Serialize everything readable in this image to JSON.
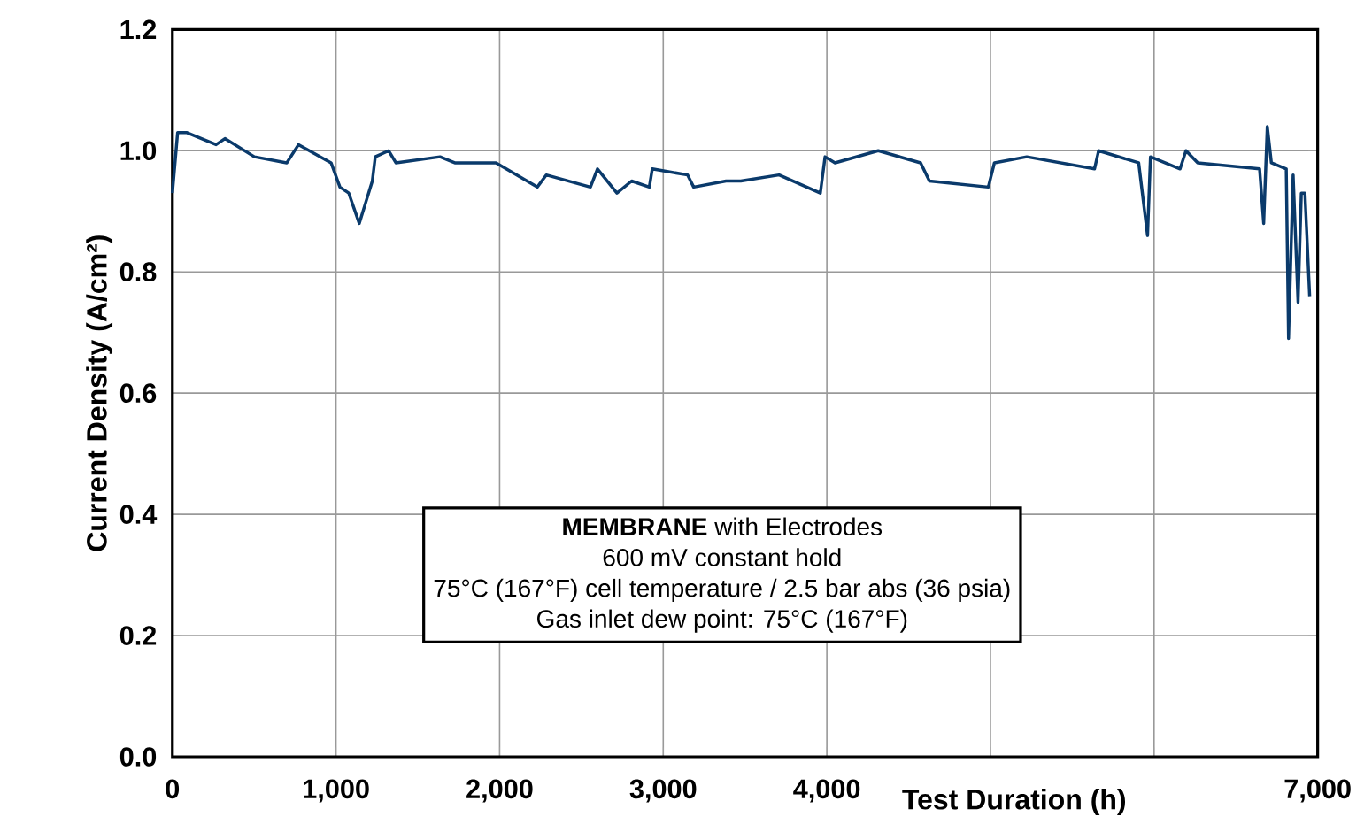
{
  "chart_data": {
    "type": "line",
    "xlabel": "Test Duration (h)",
    "ylabel": "Current Density (A/cm²)",
    "annotations": [
      "**MEMBRANE** with Electrodes",
      "600 mV constant hold",
      "75°C (167°F) cell temperature / 2.5 bar abs (36 psia)",
      "Gas inlet dew point: 75°C (167°F)"
    ],
    "x": [
      0,
      32,
      86,
      267,
      321,
      501,
      699,
      771,
      970,
      1024,
      1078,
      1142,
      1222,
      1240,
      1322,
      1366,
      1636,
      1726,
      1978,
      2230,
      2285,
      2555,
      2598,
      2717,
      2807,
      2915,
      2933,
      3149,
      3186,
      3384,
      3474,
      3708,
      3960,
      3989,
      4050,
      4314,
      4573,
      4627,
      4987,
      5024,
      5222,
      5636,
      5661,
      5906,
      5960,
      5978,
      6159,
      6195,
      6267,
      6645,
      6670,
      6692,
      6717,
      6808,
      6822,
      6850,
      6880,
      6900,
      6922,
      6951
    ],
    "series": [
      {
        "color": "#0a3a6b",
        "values": [
          0.93,
          1.03,
          1.03,
          1.01,
          1.02,
          0.99,
          0.98,
          1.01,
          0.98,
          0.94,
          0.93,
          0.88,
          0.95,
          0.99,
          1.0,
          0.98,
          0.99,
          0.98,
          0.98,
          0.94,
          0.96,
          0.94,
          0.97,
          0.93,
          0.95,
          0.94,
          0.97,
          0.96,
          0.94,
          0.95,
          0.95,
          0.96,
          0.93,
          0.99,
          0.98,
          1.0,
          0.98,
          0.95,
          0.94,
          0.98,
          0.99,
          0.97,
          1.0,
          0.98,
          0.86,
          0.99,
          0.97,
          1.0,
          0.98,
          0.97,
          0.88,
          1.04,
          0.98,
          0.97,
          0.69,
          0.96,
          0.75,
          0.93,
          0.93,
          0.76
        ]
      }
    ],
    "xlim": [
      0,
      7000
    ],
    "ylim": [
      0,
      1.2
    ],
    "xticks": [
      0,
      {
        "value": 1000,
        "label": "1,000"
      },
      {
        "value": 2000,
        "label": "2,000"
      },
      {
        "value": 3000,
        "label": "3,000"
      },
      {
        "value": 4000,
        "label": "4,000"
      },
      {
        "value": 5000,
        "label": null
      },
      {
        "value": 6000,
        "label": null
      },
      {
        "value": 7000,
        "label": "7,000"
      }
    ],
    "yticks": [
      {
        "value": 0,
        "label": "0.0"
      },
      {
        "value": 0.2,
        "label": "0.2"
      },
      {
        "value": 0.4,
        "label": "0.4"
      },
      {
        "value": 0.6,
        "label": "0.6"
      },
      {
        "value": 0.8,
        "label": "0.8"
      },
      {
        "value": 1.0,
        "label": "1.0"
      },
      {
        "value": 1.2,
        "label": "1.2"
      }
    ],
    "grid": true,
    "marker": "none",
    "line_style": "solid"
  }
}
